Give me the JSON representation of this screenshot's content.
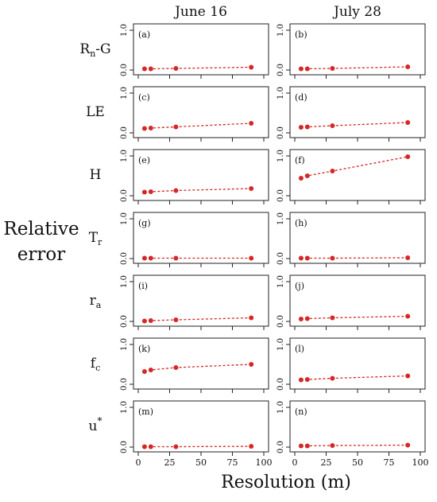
{
  "figure": {
    "ylabel": [
      "Relative",
      "error"
    ],
    "xlabel": "Resolution (m)",
    "columns": [
      "June 16",
      "July 28"
    ],
    "rows": [
      {
        "main": "R",
        "sub": "n",
        "sup": "",
        "suffix": "-G"
      },
      {
        "main": "LE",
        "sub": "",
        "sup": "",
        "suffix": ""
      },
      {
        "main": "H",
        "sub": "",
        "sup": "",
        "suffix": ""
      },
      {
        "main": "T",
        "sub": "r",
        "sup": "",
        "suffix": ""
      },
      {
        "main": "r",
        "sub": "a",
        "sup": "",
        "suffix": ""
      },
      {
        "main": "f",
        "sub": "c",
        "sup": "",
        "suffix": ""
      },
      {
        "main": "u",
        "sub": "",
        "sup": "*",
        "suffix": ""
      }
    ],
    "colors": {
      "series": "#d62728",
      "axis": "#222222"
    }
  },
  "chart_data": [
    {
      "type": "line",
      "panel": "(a)",
      "x": [
        5,
        10,
        30,
        90
      ],
      "y": [
        0.03,
        0.03,
        0.04,
        0.07
      ],
      "xlim": [
        0,
        100
      ],
      "ylim": [
        0,
        1
      ],
      "xticks": [
        "0",
        "25",
        "50",
        "75",
        "100"
      ],
      "yticks": [
        "0.0",
        "1.0"
      ],
      "line_style": "dotted"
    },
    {
      "type": "line",
      "panel": "(b)",
      "x": [
        5,
        10,
        30,
        90
      ],
      "y": [
        0.03,
        0.03,
        0.04,
        0.08
      ],
      "xlim": [
        0,
        100
      ],
      "ylim": [
        0,
        1
      ],
      "xticks": [
        "0",
        "25",
        "50",
        "75",
        "100"
      ],
      "yticks": [
        "0.0",
        "1.0"
      ],
      "line_style": "dotted"
    },
    {
      "type": "line",
      "panel": "(c)",
      "x": [
        5,
        10,
        30,
        90
      ],
      "y": [
        0.11,
        0.12,
        0.15,
        0.24
      ],
      "xlim": [
        0,
        100
      ],
      "ylim": [
        0,
        1
      ],
      "xticks": [
        "0",
        "25",
        "50",
        "75",
        "100"
      ],
      "yticks": [
        "0.0",
        "1.0"
      ],
      "line_style": "dotted"
    },
    {
      "type": "line",
      "panel": "(d)",
      "x": [
        5,
        10,
        30,
        90
      ],
      "y": [
        0.14,
        0.15,
        0.18,
        0.26
      ],
      "xlim": [
        0,
        100
      ],
      "ylim": [
        0,
        1
      ],
      "xticks": [
        "0",
        "25",
        "50",
        "75",
        "100"
      ],
      "yticks": [
        "0.0",
        "1.0"
      ],
      "line_style": "dotted"
    },
    {
      "type": "line",
      "panel": "(e)",
      "x": [
        5,
        10,
        30,
        90
      ],
      "y": [
        0.09,
        0.1,
        0.13,
        0.18
      ],
      "xlim": [
        0,
        100
      ],
      "ylim": [
        0,
        1
      ],
      "xticks": [
        "0",
        "25",
        "50",
        "75",
        "100"
      ],
      "yticks": [
        "0.0",
        "1.0"
      ],
      "line_style": "dotted"
    },
    {
      "type": "line",
      "panel": "(f)",
      "x": [
        5,
        10,
        30,
        90
      ],
      "y": [
        0.44,
        0.5,
        0.62,
        0.98
      ],
      "xlim": [
        0,
        100
      ],
      "ylim": [
        0,
        1
      ],
      "xticks": [
        "0",
        "25",
        "50",
        "75",
        "100"
      ],
      "yticks": [
        "0.0",
        "1.0"
      ],
      "line_style": "dotted"
    },
    {
      "type": "line",
      "panel": "(g)",
      "x": [
        5,
        10,
        30,
        90
      ],
      "y": [
        0.01,
        0.01,
        0.01,
        0.01
      ],
      "xlim": [
        0,
        100
      ],
      "ylim": [
        0,
        1
      ],
      "xticks": [
        "0",
        "25",
        "50",
        "75",
        "100"
      ],
      "yticks": [
        "0.0",
        "1.0"
      ],
      "line_style": "dotted"
    },
    {
      "type": "line",
      "panel": "(h)",
      "x": [
        5,
        10,
        30,
        90
      ],
      "y": [
        0.01,
        0.01,
        0.01,
        0.02
      ],
      "xlim": [
        0,
        100
      ],
      "ylim": [
        0,
        1
      ],
      "xticks": [
        "0",
        "25",
        "50",
        "75",
        "100"
      ],
      "yticks": [
        "0.0",
        "1.0"
      ],
      "line_style": "dotted"
    },
    {
      "type": "line",
      "panel": "(i)",
      "x": [
        5,
        10,
        30,
        90
      ],
      "y": [
        0.01,
        0.02,
        0.04,
        0.09
      ],
      "xlim": [
        0,
        100
      ],
      "ylim": [
        0,
        1
      ],
      "xticks": [
        "0",
        "25",
        "50",
        "75",
        "100"
      ],
      "yticks": [
        "0.0",
        "1.0"
      ],
      "line_style": "dotted"
    },
    {
      "type": "line",
      "panel": "(j)",
      "x": [
        5,
        10,
        30,
        90
      ],
      "y": [
        0.06,
        0.07,
        0.09,
        0.13
      ],
      "xlim": [
        0,
        100
      ],
      "ylim": [
        0,
        1
      ],
      "xticks": [
        "0",
        "25",
        "50",
        "75",
        "100"
      ],
      "yticks": [
        "0.0",
        "1.0"
      ],
      "line_style": "dotted"
    },
    {
      "type": "line",
      "panel": "(k)",
      "x": [
        5,
        10,
        30,
        90
      ],
      "y": [
        0.32,
        0.36,
        0.42,
        0.5
      ],
      "xlim": [
        0,
        100
      ],
      "ylim": [
        0,
        1
      ],
      "xticks": [
        "0",
        "25",
        "50",
        "75",
        "100"
      ],
      "yticks": [
        "0.0",
        "1.0"
      ],
      "line_style": "dotted"
    },
    {
      "type": "line",
      "panel": "(l)",
      "x": [
        5,
        10,
        30,
        90
      ],
      "y": [
        0.11,
        0.12,
        0.15,
        0.21
      ],
      "xlim": [
        0,
        100
      ],
      "ylim": [
        0,
        1
      ],
      "xticks": [
        "0",
        "25",
        "50",
        "75",
        "100"
      ],
      "yticks": [
        "0.0",
        "1.0"
      ],
      "line_style": "dotted"
    },
    {
      "type": "line",
      "panel": "(m)",
      "x": [
        5,
        10,
        30,
        90
      ],
      "y": [
        0.01,
        0.01,
        0.01,
        0.02
      ],
      "xlim": [
        0,
        100
      ],
      "ylim": [
        0,
        1
      ],
      "xticks": [
        "0",
        "25",
        "50",
        "75",
        "100"
      ],
      "yticks": [
        "0.0",
        "1.0"
      ],
      "line_style": "dotted"
    },
    {
      "type": "line",
      "panel": "(n)",
      "x": [
        5,
        10,
        30,
        90
      ],
      "y": [
        0.03,
        0.03,
        0.04,
        0.05
      ],
      "xlim": [
        0,
        100
      ],
      "ylim": [
        0,
        1
      ],
      "xticks": [
        "0",
        "25",
        "50",
        "75",
        "100"
      ],
      "yticks": [
        "0.0",
        "1.0"
      ],
      "line_style": "dotted"
    }
  ]
}
